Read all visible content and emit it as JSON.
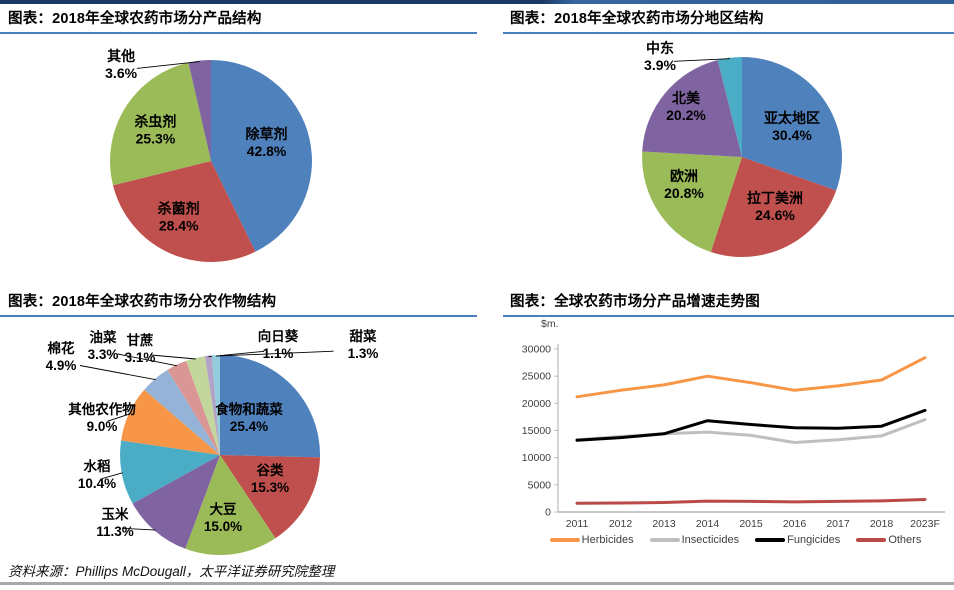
{
  "page": {
    "source_note": "资料来源：Phillips McDougall，太平洋证券研究院整理"
  },
  "chart_data": [
    {
      "id": "product-structure-pie",
      "type": "pie",
      "title": "图表：2018年全球农药市场分产品结构",
      "start_angle": "12-oclock",
      "direction": "clockwise",
      "slices": [
        {
          "label": "除草剂",
          "value": 42.8,
          "pct_label": "42.8%",
          "color": "#4F81BD",
          "label_pos": "inside",
          "label_at": [
            0.55,
            -0.18
          ]
        },
        {
          "label": "杀菌剂",
          "value": 28.4,
          "pct_label": "28.4%",
          "color": "#C0504D",
          "label_pos": "inside",
          "label_at": [
            -0.32,
            0.56
          ]
        },
        {
          "label": "杀虫剂",
          "value": 25.3,
          "pct_label": "25.3%",
          "color": "#9BBB59",
          "label_pos": "inside",
          "label_at": [
            -0.55,
            -0.3
          ]
        },
        {
          "label": "其他",
          "value": 3.6,
          "pct_label": "3.6%",
          "color": "#8064A2",
          "label_pos": "outside",
          "label_at": [
            -0.89,
            -0.95
          ]
        }
      ]
    },
    {
      "id": "region-structure-pie",
      "type": "pie",
      "title": "图表：2018年全球农药市场分地区结构",
      "start_angle": "12-oclock",
      "direction": "clockwise",
      "slices": [
        {
          "label": "亚太地区",
          "value": 30.4,
          "pct_label": "30.4%",
          "color": "#4F81BD",
          "label_pos": "inside",
          "label_at": [
            0.5,
            -0.3
          ]
        },
        {
          "label": "拉丁美洲",
          "value": 24.6,
          "pct_label": "24.6%",
          "color": "#C0504D",
          "label_pos": "inside",
          "label_at": [
            0.33,
            0.5
          ]
        },
        {
          "label": "欧洲",
          "value": 20.8,
          "pct_label": "20.8%",
          "color": "#9BBB59",
          "label_pos": "inside",
          "label_at": [
            -0.58,
            0.28
          ]
        },
        {
          "label": "北美",
          "value": 20.2,
          "pct_label": "20.2%",
          "color": "#8064A2",
          "label_pos": "inside",
          "label_at": [
            -0.56,
            -0.5
          ]
        },
        {
          "label": "中东",
          "value": 3.9,
          "pct_label": "3.9%",
          "color": "#4BACC6",
          "label_pos": "outside",
          "label_at": [
            -0.82,
            -1.0
          ]
        }
      ]
    },
    {
      "id": "crop-structure-pie",
      "type": "pie",
      "title": "图表：2018年全球农药市场分农作物结构",
      "start_angle": "12-oclock",
      "direction": "clockwise",
      "slices": [
        {
          "label": "食物和蔬菜",
          "value": 25.4,
          "pct_label": "25.4%",
          "color": "#4F81BD",
          "label_pos": "inside",
          "label_at": [
            0.29,
            -0.37
          ]
        },
        {
          "label": "谷类",
          "value": 15.3,
          "pct_label": "15.3%",
          "color": "#C0504D",
          "label_pos": "inside",
          "label_at": [
            0.5,
            0.24
          ]
        },
        {
          "label": "大豆",
          "value": 15.0,
          "pct_label": "15.0%",
          "color": "#9BBB59",
          "label_pos": "inside",
          "label_at": [
            0.03,
            0.63
          ]
        },
        {
          "label": "玉米",
          "value": 11.3,
          "pct_label": "11.3%",
          "color": "#8064A2",
          "label_pos": "outside",
          "label_at": [
            -1.05,
            0.68
          ]
        },
        {
          "label": "水稻",
          "value": 10.4,
          "pct_label": "10.4%",
          "color": "#4BACC6",
          "label_pos": "outside",
          "label_at": [
            -1.23,
            0.2
          ]
        },
        {
          "label": "其他农作物",
          "value": 9.0,
          "pct_label": "9.0%",
          "color": "#F79646",
          "label_pos": "outside",
          "label_at": [
            -1.18,
            -0.37
          ]
        },
        {
          "label": "棉花",
          "value": 4.9,
          "pct_label": "4.9%",
          "color": "#95B3D7",
          "label_pos": "outside",
          "label_at": [
            -1.59,
            -0.98
          ]
        },
        {
          "label": "油菜",
          "value": 3.3,
          "pct_label": "3.3%",
          "color": "#D99694",
          "label_pos": "outside",
          "label_at": [
            -1.17,
            -1.09
          ]
        },
        {
          "label": "甘蔗",
          "value": 3.1,
          "pct_label": "3.1%",
          "color": "#C3D69B",
          "label_pos": "outside",
          "label_at": [
            -0.8,
            -1.06
          ]
        },
        {
          "label": "向日葵",
          "value": 1.1,
          "pct_label": "1.1%",
          "color": "#B2A2C7",
          "label_pos": "outside",
          "label_at": [
            0.58,
            -1.1
          ]
        },
        {
          "label": "甜菜",
          "value": 1.3,
          "pct_label": "1.3%",
          "color": "#93CDDD",
          "label_pos": "outside",
          "label_at": [
            1.43,
            -1.1
          ]
        }
      ]
    },
    {
      "id": "product-growth-trend-line",
      "type": "line",
      "title": "图表：全球农药市场分产品增速走势图",
      "ylabel": "$m.",
      "categories": [
        "2011",
        "2012",
        "2013",
        "2014",
        "2015",
        "2016",
        "2017",
        "2018",
        "2023F"
      ],
      "ylim": [
        0,
        30000
      ],
      "ytick_step": 5000,
      "yticks": [
        0,
        5000,
        10000,
        15000,
        20000,
        25000,
        30000
      ],
      "grid": false,
      "legend_position": "bottom",
      "series": [
        {
          "name": "Herbicides",
          "color": "#F79646",
          "values": [
            21200,
            22400,
            23400,
            25000,
            23800,
            22400,
            23200,
            24300,
            28400
          ]
        },
        {
          "name": "Insecticides",
          "color": "#BFBFBF",
          "values": [
            13300,
            13900,
            14400,
            14700,
            14100,
            12800,
            13300,
            14000,
            17000
          ]
        },
        {
          "name": "Fungicides",
          "color": "#000000",
          "values": [
            13200,
            13700,
            14400,
            16800,
            16100,
            15500,
            15400,
            15800,
            18700
          ]
        },
        {
          "name": "Others",
          "color": "#B94A48",
          "values": [
            1600,
            1650,
            1750,
            2000,
            1950,
            1850,
            1950,
            2050,
            2300
          ]
        }
      ]
    }
  ]
}
